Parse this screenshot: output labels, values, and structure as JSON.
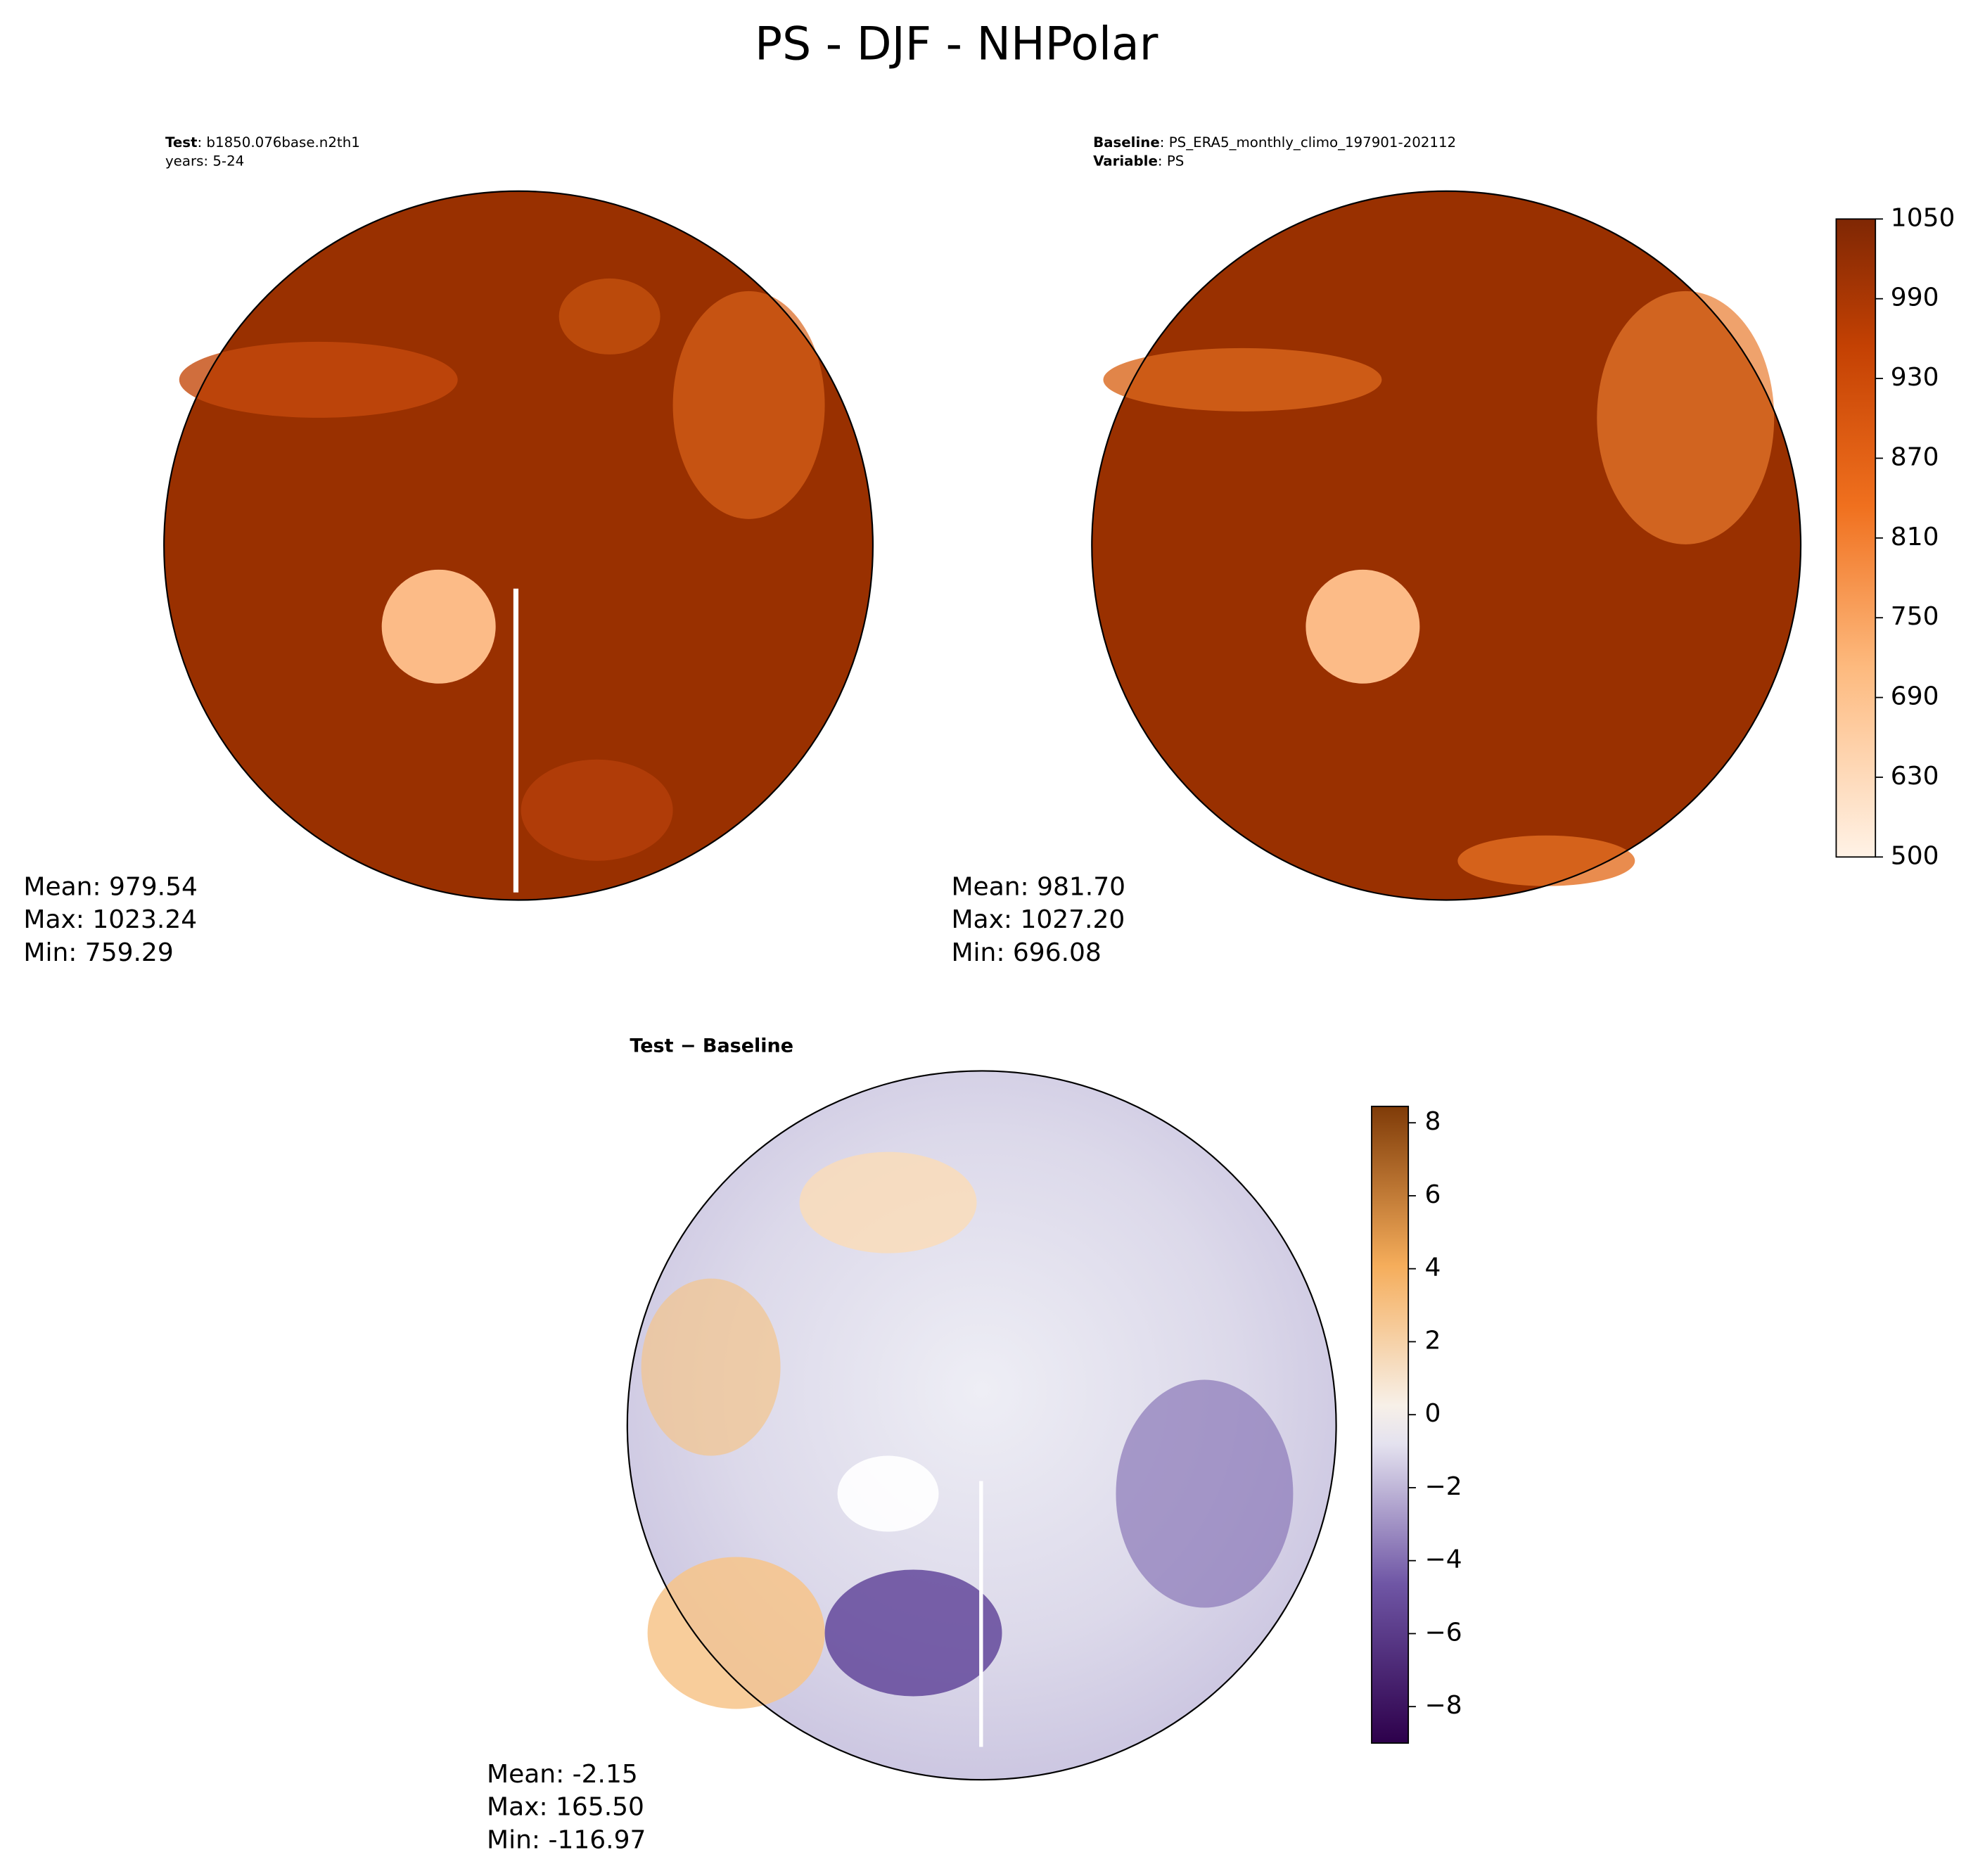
{
  "title": "PS - DJF - NHPolar",
  "panels": [
    {
      "header": [
        {
          "label": "Test",
          "text": ": b1850.076base.n2th1"
        },
        {
          "label": null,
          "text": "years: 5-24"
        }
      ],
      "stats": [
        "Mean: 979.54",
        "Max: 1023.24",
        "Min: 759.29"
      ]
    },
    {
      "header": [
        {
          "label": "Baseline",
          "text": ": PS_ERA5_monthly_climo_197901-202112"
        },
        {
          "label": "Variable",
          "text": ": PS"
        }
      ],
      "stats": [
        "Mean: 981.70",
        "Max: 1027.20",
        "Min: 696.08"
      ]
    },
    {
      "header": [
        {
          "label": "Test − Baseline",
          "text": null
        }
      ],
      "stats": [
        "Mean: -2.15",
        "Max: 165.50",
        "Min: -116.97"
      ]
    }
  ],
  "colorbars": [
    {
      "ticks": [
        500,
        630,
        690,
        750,
        810,
        870,
        930,
        990,
        1050
      ]
    },
    {
      "lim": [
        -9,
        8.45
      ],
      "ticks": [
        {
          "value": -8,
          "label": "−8"
        },
        {
          "value": -6,
          "label": "−6"
        },
        {
          "value": -4,
          "label": "−4"
        },
        {
          "value": -2,
          "label": "−2"
        },
        0,
        2,
        4,
        6,
        8
      ]
    }
  ]
}
